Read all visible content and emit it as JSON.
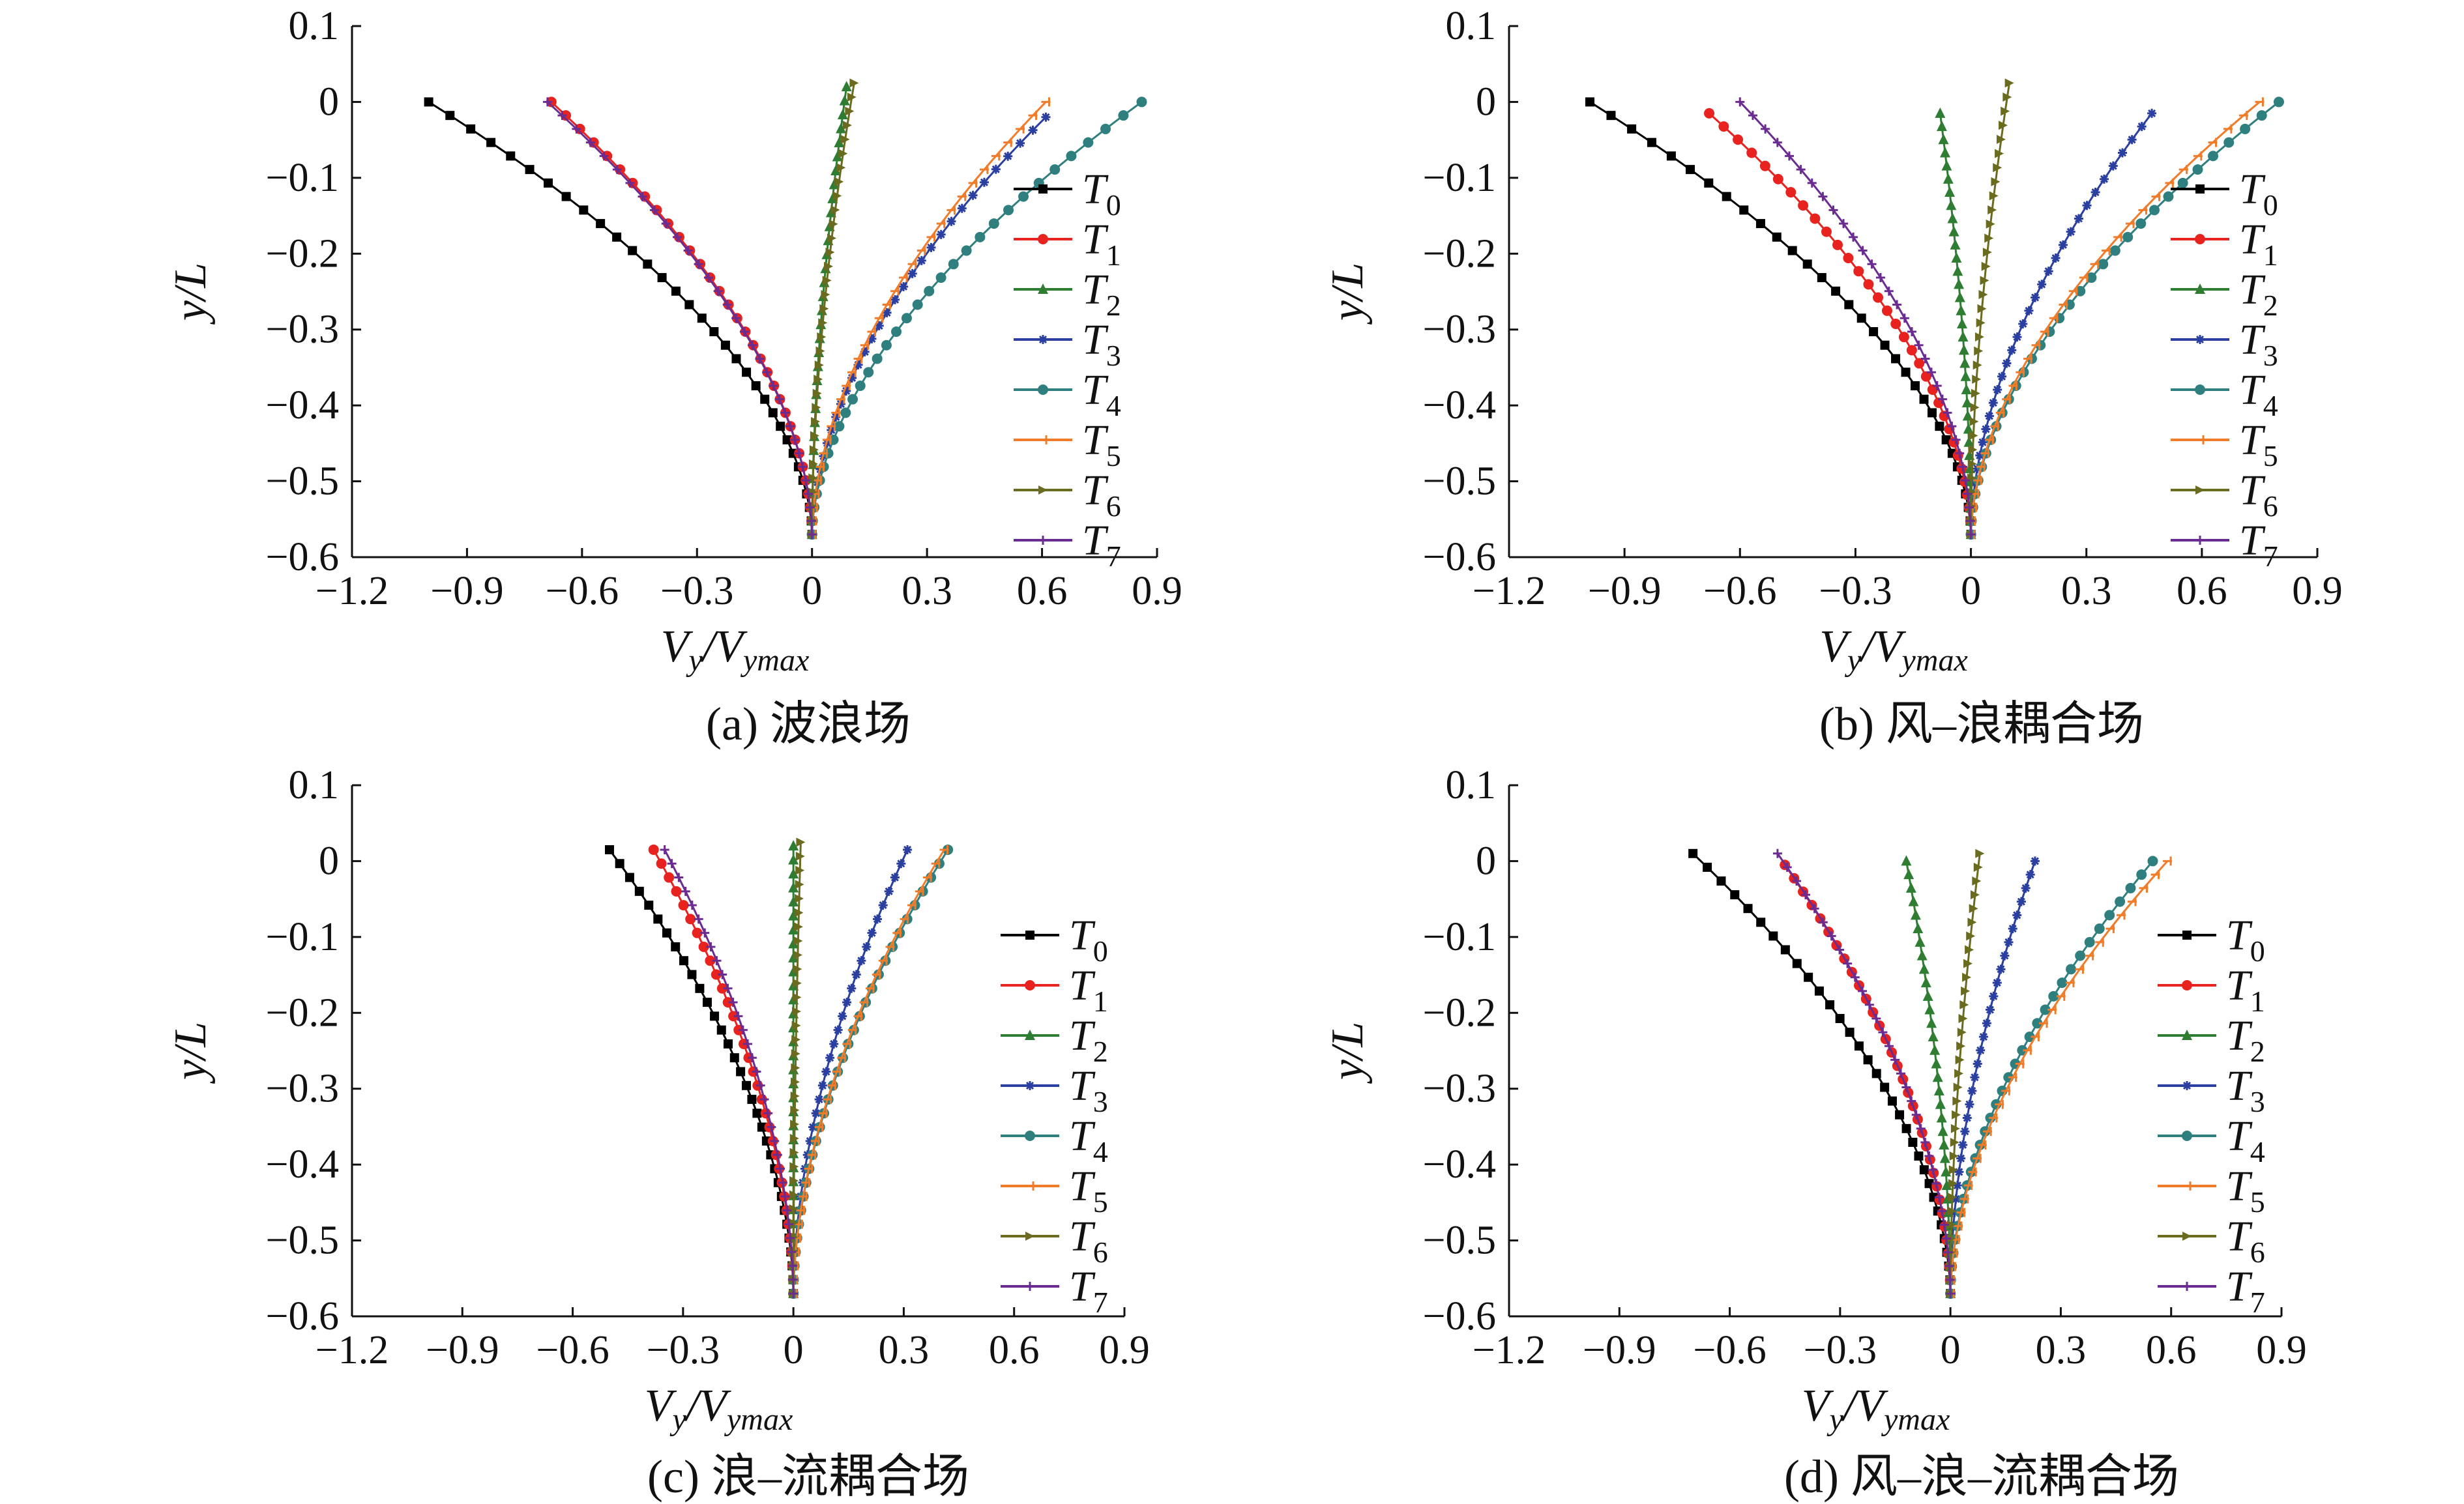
{
  "figure": {
    "panels": [
      {
        "caption": "(a) 波浪场"
      },
      {
        "caption": "(b) 风–浪耦合场"
      },
      {
        "caption": "(c) 浪–流耦合场"
      },
      {
        "caption": "(d) 风–浪–流耦合场"
      }
    ]
  },
  "series_style": [
    {
      "name": "T0",
      "base": "T",
      "sub": "0",
      "color": "#000000",
      "marker": "square"
    },
    {
      "name": "T1",
      "base": "T",
      "sub": "1",
      "color": "#e8231f",
      "marker": "circle"
    },
    {
      "name": "T2",
      "base": "T",
      "sub": "2",
      "color": "#2e7d32",
      "marker": "triangle"
    },
    {
      "name": "T3",
      "base": "T",
      "sub": "3",
      "color": "#2a3f9f",
      "marker": "star"
    },
    {
      "name": "T4",
      "base": "T",
      "sub": "4",
      "color": "#2f7f7f",
      "marker": "circle"
    },
    {
      "name": "T5",
      "base": "T",
      "sub": "5",
      "color": "#f07c2a",
      "marker": "tick"
    },
    {
      "name": "T6",
      "base": "T",
      "sub": "6",
      "color": "#6b6b1f",
      "marker": "arrow"
    },
    {
      "name": "T7",
      "base": "T",
      "sub": "7",
      "color": "#6a2c91",
      "marker": "plus"
    }
  ],
  "chart_data": [
    {
      "type": "line",
      "title": "(a) 波浪场",
      "xlabel": "Vy/Vymax",
      "ylabel": "y/L",
      "xlim": [
        -1.2,
        0.9
      ],
      "ylim": [
        -0.6,
        0.1
      ],
      "xticks": [
        "−1.2",
        "−0.9",
        "−0.6",
        "−0.3",
        "0",
        "0.3",
        "0.6",
        "0.9"
      ],
      "yticks": [
        "0.1",
        "0",
        "−0.1",
        "−0.2",
        "−0.3",
        "−0.4",
        "−0.5",
        "−0.6"
      ],
      "legend": "right-upper",
      "y_range": [
        0.0,
        -0.57
      ],
      "series": [
        {
          "name": "T0",
          "top_x": -1.0,
          "top_y": 0.0
        },
        {
          "name": "T1",
          "top_x": -0.68,
          "top_y": 0.0
        },
        {
          "name": "T2",
          "top_x": 0.09,
          "top_y": 0.02
        },
        {
          "name": "T3",
          "top_x": 0.61,
          "top_y": -0.02
        },
        {
          "name": "T4",
          "top_x": 0.86,
          "top_y": 0.0
        },
        {
          "name": "T5",
          "top_x": 0.61,
          "top_y": 0.0
        },
        {
          "name": "T6",
          "top_x": 0.11,
          "top_y": 0.025
        },
        {
          "name": "T7",
          "top_x": -0.69,
          "top_y": 0.0
        }
      ]
    },
    {
      "type": "line",
      "title": "(b) 风–浪耦合场",
      "xlabel": "Vy/Vymax",
      "ylabel": "y/L",
      "xlim": [
        -1.2,
        0.9
      ],
      "ylim": [
        -0.6,
        0.1
      ],
      "xticks": [
        "−1.2",
        "−0.9",
        "−0.6",
        "−0.3",
        "0",
        "0.3",
        "0.6",
        "0.9"
      ],
      "yticks": [
        "0.1",
        "0",
        "−0.1",
        "−0.2",
        "−0.3",
        "−0.4",
        "−0.5",
        "−0.6"
      ],
      "legend": "right",
      "y_range": [
        0.0,
        -0.57
      ],
      "series": [
        {
          "name": "T0",
          "top_x": -0.99,
          "top_y": 0.0
        },
        {
          "name": "T1",
          "top_x": -0.68,
          "top_y": -0.015
        },
        {
          "name": "T2",
          "top_x": -0.08,
          "top_y": -0.015
        },
        {
          "name": "T3",
          "top_x": 0.47,
          "top_y": -0.015
        },
        {
          "name": "T4",
          "top_x": 0.8,
          "top_y": 0.0
        },
        {
          "name": "T5",
          "top_x": 0.75,
          "top_y": 0.0
        },
        {
          "name": "T6",
          "top_x": 0.1,
          "top_y": 0.025
        },
        {
          "name": "T7",
          "top_x": -0.6,
          "top_y": 0.0
        }
      ]
    },
    {
      "type": "line",
      "title": "(c) 浪–流耦合场",
      "xlabel": "Vy/Vymax",
      "ylabel": "y/L",
      "xlim": [
        -1.2,
        0.9
      ],
      "ylim": [
        -0.6,
        0.1
      ],
      "xticks": [
        "−1.2",
        "−0.9",
        "−0.6",
        "−0.3",
        "0",
        "0.3",
        "0.6",
        "0.9"
      ],
      "yticks": [
        "0.1",
        "0",
        "−0.1",
        "−0.2",
        "−0.3",
        "−0.4",
        "−0.5",
        "−0.6"
      ],
      "legend": "right",
      "y_range": [
        0.015,
        -0.57
      ],
      "series": [
        {
          "name": "T0",
          "top_x": -0.5,
          "top_y": 0.015
        },
        {
          "name": "T1",
          "top_x": -0.38,
          "top_y": 0.015
        },
        {
          "name": "T2",
          "top_x": 0.0,
          "top_y": 0.02
        },
        {
          "name": "T3",
          "top_x": 0.31,
          "top_y": 0.015
        },
        {
          "name": "T4",
          "top_x": 0.42,
          "top_y": 0.015
        },
        {
          "name": "T5",
          "top_x": 0.41,
          "top_y": 0.015
        },
        {
          "name": "T6",
          "top_x": 0.02,
          "top_y": 0.025
        },
        {
          "name": "T7",
          "top_x": -0.35,
          "top_y": 0.015
        }
      ]
    },
    {
      "type": "line",
      "title": "(d) 风–浪–流耦合场",
      "xlabel": "Vy/Vymax",
      "ylabel": "y/L",
      "xlim": [
        -1.2,
        0.9
      ],
      "ylim": [
        -0.6,
        0.1
      ],
      "xticks": [
        "−1.2",
        "−0.9",
        "−0.6",
        "−0.3",
        "0",
        "0.3",
        "0.6",
        "0.9"
      ],
      "yticks": [
        "0.1",
        "0",
        "−0.1",
        "−0.2",
        "−0.3",
        "−0.4",
        "−0.5",
        "−0.6"
      ],
      "legend": "right",
      "y_range": [
        0.01,
        -0.57
      ],
      "series": [
        {
          "name": "T0",
          "top_x": -0.7,
          "top_y": 0.01
        },
        {
          "name": "T1",
          "top_x": -0.45,
          "top_y": -0.005
        },
        {
          "name": "T2",
          "top_x": -0.12,
          "top_y": 0.0
        },
        {
          "name": "T3",
          "top_x": 0.23,
          "top_y": 0.0
        },
        {
          "name": "T4",
          "top_x": 0.55,
          "top_y": 0.0
        },
        {
          "name": "T5",
          "top_x": 0.59,
          "top_y": 0.0
        },
        {
          "name": "T6",
          "top_x": 0.08,
          "top_y": 0.01
        },
        {
          "name": "T7",
          "top_x": -0.47,
          "top_y": 0.01
        }
      ]
    }
  ]
}
